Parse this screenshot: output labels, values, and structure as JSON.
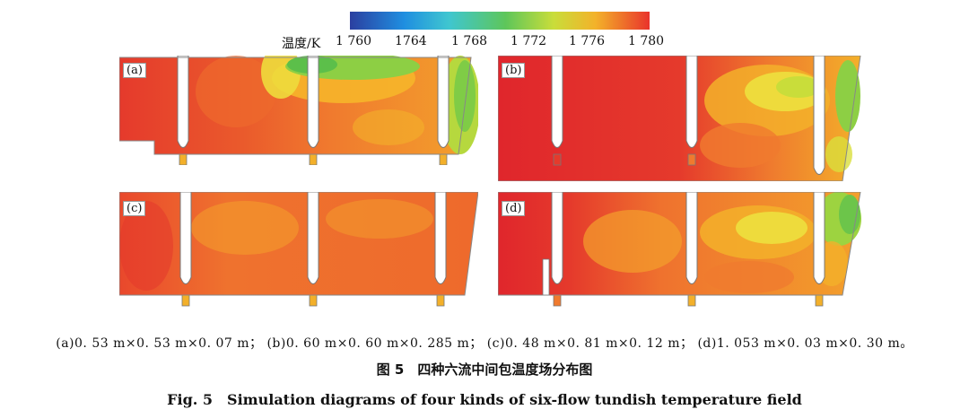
{
  "colorbar": {
    "title": "温度/K",
    "ticks": [
      "1 760",
      "1764",
      "1 768",
      "1 772",
      "1 776",
      "1 780"
    ],
    "min": 1760,
    "max": 1780
  },
  "panels": [
    {
      "label": "(a)"
    },
    {
      "label": "(b)"
    },
    {
      "label": "(c)"
    },
    {
      "label": "(d)"
    }
  ],
  "caption": {
    "subcaptions": "(a)0. 53 m×0. 53 m×0. 07 m；  (b)0. 60 m×0. 60 m×0. 285 m；  (c)0. 48 m×0. 81 m×0. 12 m；  (d)1. 053 m×0. 03 m×0. 30 m。",
    "zh": "图 5　四种六流中间包温度场分布图",
    "en": "Fig. 5　Simulation diagrams of four kinds of six-flow tundish temperature field"
  },
  "colors": {
    "hot": "#e53a2c",
    "warm": "#f07a2e",
    "mid": "#f3b02a",
    "yellow": "#d9df3c",
    "green": "#5cbf4a"
  }
}
